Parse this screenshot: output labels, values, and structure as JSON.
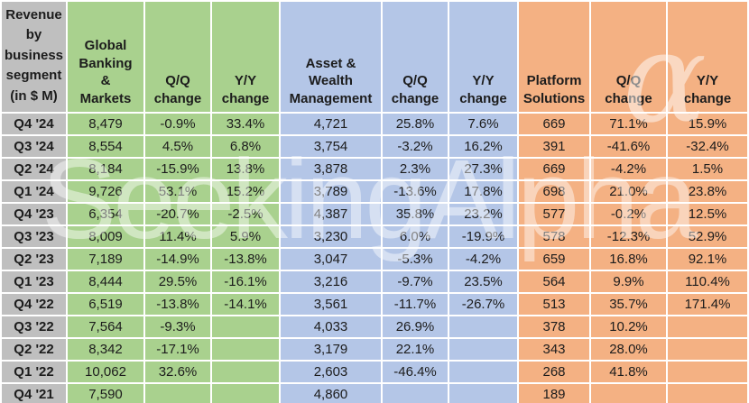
{
  "watermark": {
    "text": "SeekingAlpha",
    "alpha_symbol": "α"
  },
  "headers": {
    "corner": "Revenue\nby\nbusiness\nsegment\n(in $ M)",
    "gbm": "Global\nBanking\n&\nMarkets",
    "awm": "Asset &\nWealth\nManagement",
    "ps": "Platform\nSolutions",
    "qq_change": "Q/Q\nchange",
    "yy_change": "Y/Y\nchange"
  },
  "colors": {
    "label_gray": "#BFBFBF",
    "gbm_green": "#A9D18E",
    "awm_blue": "#B4C6E7",
    "ps_orange": "#F4B183",
    "grid_white": "#FFFFFF",
    "text_dark": "#1C1C1C"
  },
  "chart_data": {
    "type": "table",
    "title": "Revenue by business segment (in $ M)",
    "column_headers": [
      "Revenue by business segment (in $ M)",
      "Global Banking & Markets",
      "Q/Q change",
      "Y/Y change",
      "Asset & Wealth Management",
      "Q/Q change",
      "Y/Y change",
      "Platform Solutions",
      "Q/Q change",
      "Y/Y change"
    ],
    "rows": [
      {
        "label": "Q4 '24",
        "values": [
          "8,479",
          "-0.9%",
          "33.4%",
          "4,721",
          "25.8%",
          "7.6%",
          "669",
          "71.1%",
          "15.9%"
        ]
      },
      {
        "label": "Q3 '24",
        "values": [
          "8,554",
          "4.5%",
          "6.8%",
          "3,754",
          "-3.2%",
          "16.2%",
          "391",
          "-41.6%",
          "-32.4%"
        ]
      },
      {
        "label": "Q2 '24",
        "values": [
          "8,184",
          "-15.9%",
          "13.8%",
          "3,878",
          "2.3%",
          "27.3%",
          "669",
          "-4.2%",
          "1.5%"
        ]
      },
      {
        "label": "Q1 '24",
        "values": [
          "9,726",
          "53.1%",
          "15.2%",
          "3,789",
          "-13.6%",
          "17.8%",
          "698",
          "21.0%",
          "23.8%"
        ]
      },
      {
        "label": "Q4 '23",
        "values": [
          "6,354",
          "-20.7%",
          "-2.5%",
          "4,387",
          "35.8%",
          "23.2%",
          "577",
          "-0.2%",
          "12.5%"
        ]
      },
      {
        "label": "Q3 '23",
        "values": [
          "8,009",
          "11.4%",
          "5.9%",
          "3,230",
          "6.0%",
          "-19.9%",
          "578",
          "-12.3%",
          "52.9%"
        ]
      },
      {
        "label": "Q2 '23",
        "values": [
          "7,189",
          "-14.9%",
          "-13.8%",
          "3,047",
          "-5.3%",
          "-4.2%",
          "659",
          "16.8%",
          "92.1%"
        ]
      },
      {
        "label": "Q1 '23",
        "values": [
          "8,444",
          "29.5%",
          "-16.1%",
          "3,216",
          "-9.7%",
          "23.5%",
          "564",
          "9.9%",
          "110.4%"
        ]
      },
      {
        "label": "Q4 '22",
        "values": [
          "6,519",
          "-13.8%",
          "-14.1%",
          "3,561",
          "-11.7%",
          "-26.7%",
          "513",
          "35.7%",
          "171.4%"
        ]
      },
      {
        "label": "Q3 '22",
        "values": [
          "7,564",
          "-9.3%",
          "",
          "4,033",
          "26.9%",
          "",
          "378",
          "10.2%",
          ""
        ]
      },
      {
        "label": "Q2 '22",
        "values": [
          "8,342",
          "-17.1%",
          "",
          "3,179",
          "22.1%",
          "",
          "343",
          "28.0%",
          ""
        ]
      },
      {
        "label": "Q1 '22",
        "values": [
          "10,062",
          "32.6%",
          "",
          "2,603",
          "-46.4%",
          "",
          "268",
          "41.8%",
          ""
        ]
      },
      {
        "label": "Q4 '21",
        "values": [
          "7,590",
          "",
          "",
          "4,860",
          "",
          "",
          "189",
          "",
          ""
        ]
      }
    ]
  }
}
